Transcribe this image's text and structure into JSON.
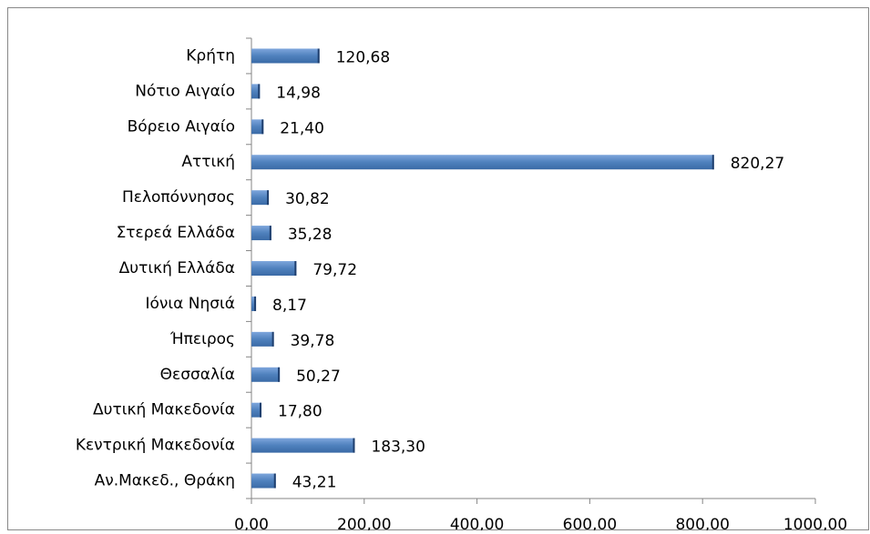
{
  "chart_data": {
    "type": "bar",
    "orientation": "horizontal",
    "categories": [
      "Κρήτη",
      "Νότιο Αιγαίο",
      "Βόρειο Αιγαίο",
      "Αττική",
      "Πελοπόννησος",
      "Στερεά Ελλάδα",
      "Δυτική Ελλάδα",
      "Ιόνια Νησιά",
      "Ήπειρος",
      "Θεσσαλία",
      "Δυτική Μακεδονία",
      "Κεντρική Μακεδονία",
      "Αν.Μακεδ., Θράκη"
    ],
    "values": [
      120.68,
      14.98,
      21.4,
      820.27,
      30.82,
      35.28,
      79.72,
      8.17,
      39.78,
      50.27,
      17.8,
      183.3,
      43.21
    ],
    "value_labels": [
      "120,68",
      "14,98",
      "21,40",
      "820,27",
      "30,82",
      "35,28",
      "79,72",
      "8,17",
      "39,78",
      "50,27",
      "17,80",
      "183,30",
      "43,21"
    ],
    "color": "#4f81bd",
    "xlim": [
      0,
      1000
    ],
    "xticks": [
      {
        "value": 0,
        "label": "0,00"
      },
      {
        "value": 200,
        "label": "200,00"
      },
      {
        "value": 400,
        "label": "400,00"
      },
      {
        "value": 600,
        "label": "600,00"
      },
      {
        "value": 800,
        "label": "800,00"
      },
      {
        "value": 1000,
        "label": "1000,00"
      }
    ]
  }
}
